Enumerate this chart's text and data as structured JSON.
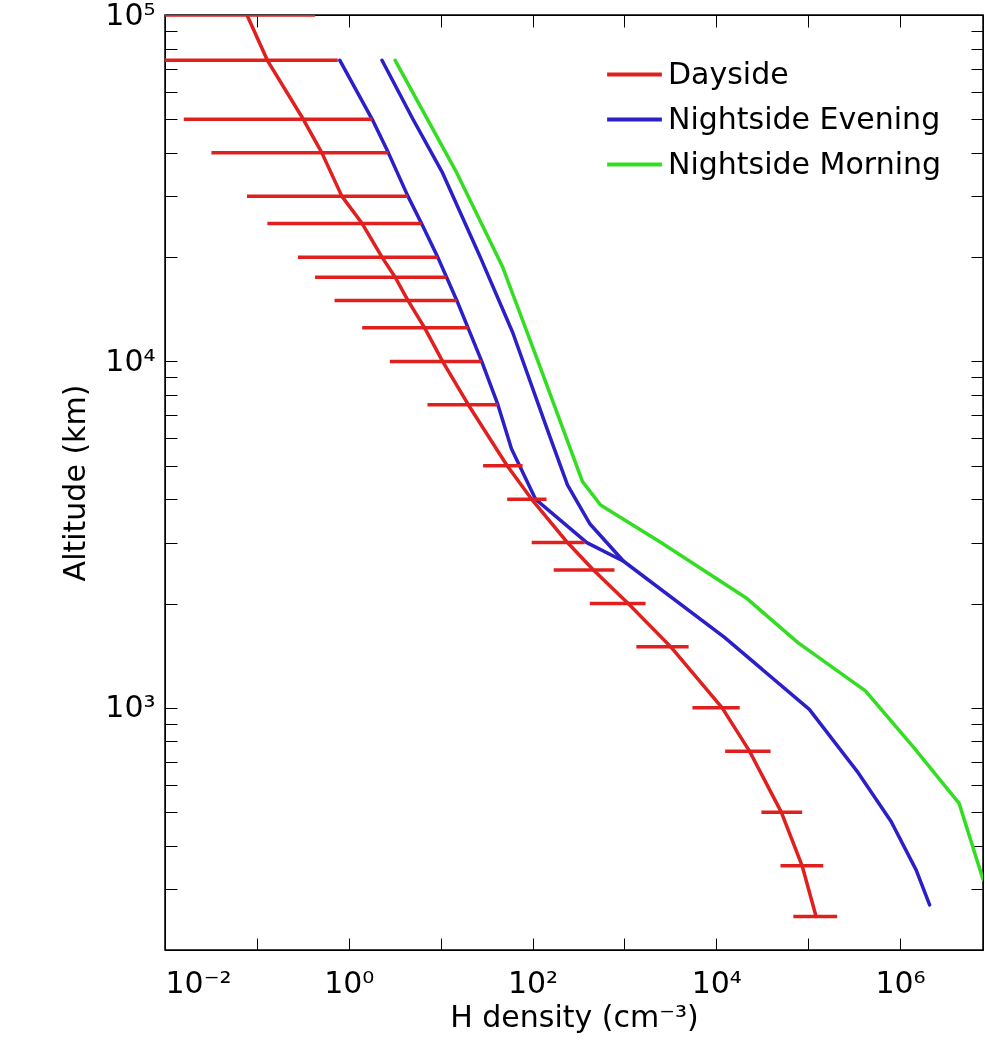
{
  "chart_data": {
    "type": "line",
    "xlabel": "H density (cm⁻³)",
    "ylabel": "Altitude (km)",
    "log": "xy",
    "grid": false,
    "legend": "top right",
    "line_style": "solid",
    "marker": "none",
    "xlim": [
      0.01,
      8000000
    ],
    "ylim": [
      200,
      100000
    ],
    "xticks": [
      {
        "value": 0.01,
        "label": "10⁻²"
      },
      {
        "value": 0.1,
        "label": null
      },
      {
        "value": 1,
        "label": "10⁰"
      },
      {
        "value": 10,
        "label": null
      },
      {
        "value": 100,
        "label": "10²"
      },
      {
        "value": 1000,
        "label": null
      },
      {
        "value": 10000,
        "label": "10⁴"
      },
      {
        "value": 100000,
        "label": null
      },
      {
        "value": 1000000,
        "label": "10⁶"
      }
    ],
    "yticks": [
      {
        "value": 200,
        "label": null
      },
      {
        "value": 300,
        "label": null
      },
      {
        "value": 400,
        "label": null
      },
      {
        "value": 500,
        "label": null
      },
      {
        "value": 600,
        "label": null
      },
      {
        "value": 700,
        "label": null
      },
      {
        "value": 800,
        "label": null
      },
      {
        "value": 900,
        "label": null
      },
      {
        "value": 1000,
        "label": "10³"
      },
      {
        "value": 2000,
        "label": null
      },
      {
        "value": 3000,
        "label": null
      },
      {
        "value": 4000,
        "label": null
      },
      {
        "value": 5000,
        "label": null
      },
      {
        "value": 6000,
        "label": null
      },
      {
        "value": 7000,
        "label": null
      },
      {
        "value": 8000,
        "label": null
      },
      {
        "value": 9000,
        "label": null
      },
      {
        "value": 10000,
        "label": "10⁴"
      },
      {
        "value": 20000,
        "label": null
      },
      {
        "value": 30000,
        "label": null
      },
      {
        "value": 40000,
        "label": null
      },
      {
        "value": 50000,
        "label": null
      },
      {
        "value": 60000,
        "label": null
      },
      {
        "value": 70000,
        "label": null
      },
      {
        "value": 80000,
        "label": null
      },
      {
        "value": 90000,
        "label": null
      },
      {
        "value": 100000,
        "label": "10⁵"
      }
    ],
    "series": [
      {
        "name": "Dayside",
        "color": "#e0201e",
        "x": [
          0.078,
          0.13,
          0.32,
          0.51,
          0.84,
          1.4,
          2.3,
          3.2,
          4.4,
          6.7,
          10.5,
          20,
          53,
          98,
          240,
          460,
          1100,
          3200,
          11600,
          23000,
          51000,
          86000,
          122000
        ],
        "values": [
          100000,
          74000,
          50000,
          40000,
          30000,
          25000,
          20000,
          17500,
          15000,
          12500,
          10000,
          7500,
          5000,
          4000,
          3000,
          2500,
          2000,
          1500,
          1000,
          750,
          500,
          350,
          250
        ],
        "xerrors": [
          [
            0.01,
            0.43
          ],
          [
            0.01,
            0.76
          ],
          [
            0.016,
            1.8
          ],
          [
            0.032,
            2.7
          ],
          [
            0.078,
            4.4
          ],
          [
            0.13,
            6.2
          ],
          [
            0.28,
            9.3
          ],
          [
            0.43,
            11.6
          ],
          [
            0.7,
            15
          ],
          [
            1.4,
            20
          ],
          [
            2.8,
            28
          ],
          [
            7.2,
            42
          ],
          [
            29,
            78
          ],
          [
            53,
            142
          ],
          [
            98,
            370
          ],
          [
            170,
            780
          ],
          [
            420,
            1700
          ],
          [
            1350,
            5000
          ],
          [
            5500,
            18000
          ],
          [
            12500,
            39000
          ],
          [
            31000,
            86000
          ],
          [
            50000,
            146000
          ],
          [
            69000,
            207000
          ]
        ]
      },
      {
        "color": "#2b1fc8",
        "x": [
          0.8,
          1.8,
          2.7,
          4.4,
          6.2,
          9.3,
          15,
          28,
          42,
          59,
          108,
          390,
          980
        ],
        "values": [
          74000,
          50000,
          40000,
          30000,
          25000,
          20000,
          15000,
          10000,
          7500,
          5600,
          4000,
          3000,
          2650
        ]
      },
      {
        "name": "Nightside Evening",
        "color": "#2b1fc8",
        "x": [
          2.3,
          5.0,
          10.5,
          27,
          61,
          150,
          240,
          420,
          980,
          12200,
          103000,
          350000,
          800000,
          1500000,
          2100000
        ],
        "values": [
          74000,
          50000,
          35000,
          20000,
          12100,
          6200,
          4400,
          3400,
          2650,
          1600,
          990,
          650,
          470,
          340,
          270
        ]
      },
      {
        "name": "Nightside Morning",
        "color": "#33dd22",
        "x": [
          3.2,
          15,
          47,
          120,
          350,
          550,
          2500,
          21000,
          78000,
          420000,
          1400000,
          4400000,
          8000000
        ],
        "values": [
          74000,
          35000,
          18800,
          9700,
          4500,
          3850,
          3000,
          2080,
          1540,
          1120,
          770,
          530,
          320
        ]
      }
    ]
  }
}
